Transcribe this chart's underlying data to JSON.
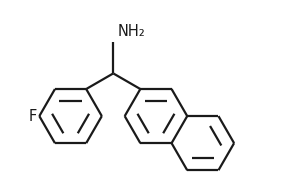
{
  "background_color": "#ffffff",
  "bond_color": "#1a1a1a",
  "figsize": [
    2.87,
    1.92
  ],
  "dpi": 100,
  "NH2_label": "NH₂",
  "F_label": "F",
  "line_width": 1.6,
  "font_size": 10.5
}
